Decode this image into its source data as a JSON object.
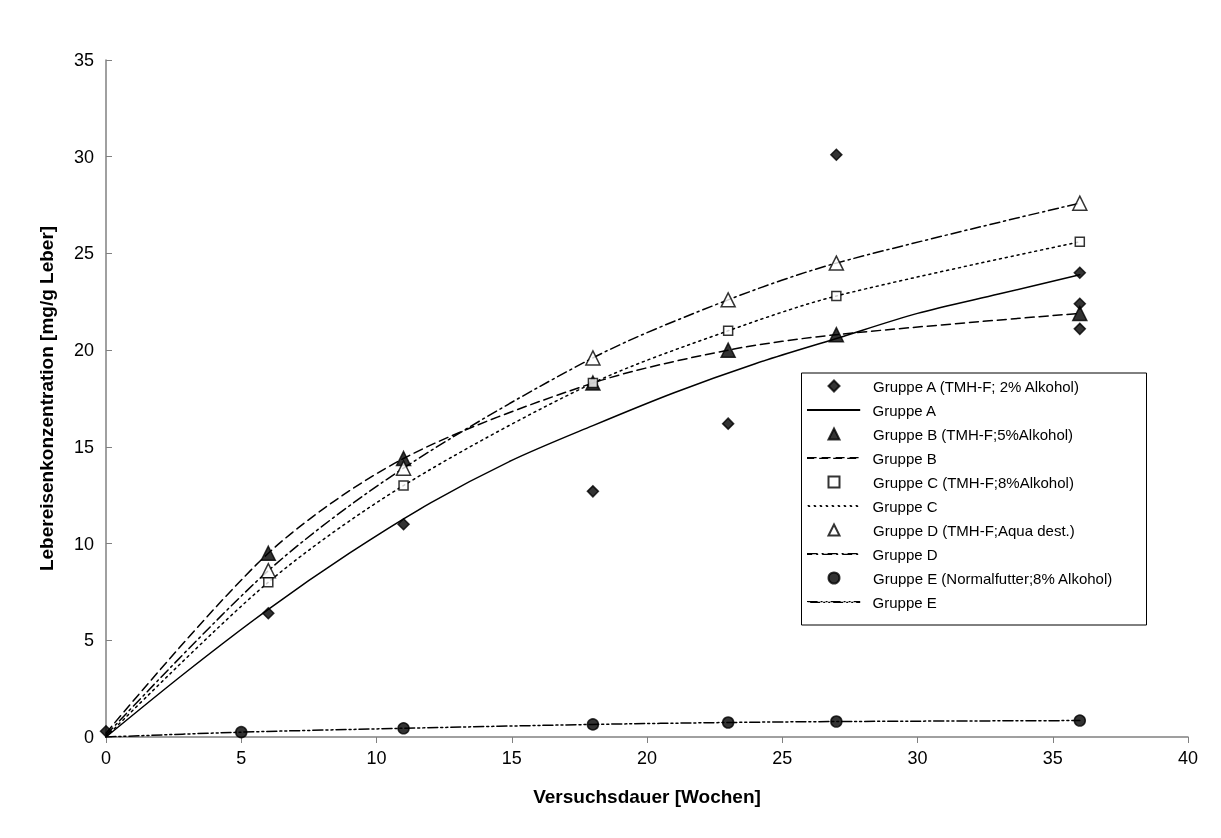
{
  "chart_data": {
    "type": "scatter",
    "xlabel": "Versuchsdauer [Wochen]",
    "ylabel": "Lebereisenkonzentration [mg/g Leber]",
    "xlim": [
      0,
      40
    ],
    "xticks": [
      0,
      5,
      10,
      15,
      20,
      25,
      30,
      35,
      40
    ],
    "ylim": [
      0,
      35
    ],
    "yticks": [
      0,
      5,
      10,
      15,
      20,
      25,
      30,
      35
    ],
    "grid": false,
    "legend": "right",
    "series": [
      {
        "name": "Gruppe A (TMH-F; 2% Alkohol)",
        "marker": "diamond",
        "color": "#000000",
        "x": [
          0,
          6,
          11,
          18,
          23,
          27,
          36,
          36,
          36
        ],
        "values": [
          0.3,
          6.4,
          11,
          12.7,
          16.2,
          30.1,
          24,
          22.4,
          21.1
        ]
      },
      {
        "name": "Gruppe A",
        "type": "line",
        "line_style": "solid",
        "marker": "none",
        "color": "#000000",
        "x": [
          0,
          3,
          6,
          9,
          12,
          15,
          18,
          21,
          24,
          27,
          30,
          33,
          36
        ],
        "values": [
          0,
          3.4,
          6.6,
          9.5,
          12.1,
          14.3,
          16.1,
          17.8,
          19.3,
          20.6,
          21.9,
          22.9,
          23.9
        ]
      },
      {
        "name": "Gruppe B (TMH-F;5%Alkohol)",
        "marker": "triangle",
        "color": "#000000",
        "x": [
          6,
          11,
          18,
          23,
          27,
          36
        ],
        "values": [
          9.5,
          14.4,
          18.3,
          20,
          20.8,
          21.9
        ]
      },
      {
        "name": "Gruppe B",
        "type": "line",
        "line_style": "dashed",
        "marker": "none",
        "color": "#000000",
        "x": [
          0,
          6,
          11,
          18,
          23,
          27,
          36
        ],
        "values": [
          0.2,
          9.5,
          14.4,
          18.3,
          20,
          20.8,
          21.9
        ]
      },
      {
        "name": "Gruppe C (TMH-F;8%Alkohol)",
        "marker": "square",
        "color": "#ffffff",
        "x": [
          6,
          11,
          18,
          23,
          27,
          36
        ],
        "values": [
          8,
          13,
          18.3,
          21,
          22.8,
          25.6
        ]
      },
      {
        "name": "Gruppe C",
        "type": "line",
        "line_style": "dotted",
        "marker": "none",
        "color": "#000000",
        "x": [
          0,
          6,
          11,
          18,
          23,
          27,
          36
        ],
        "values": [
          0,
          8,
          13,
          18.3,
          21,
          22.8,
          25.6
        ]
      },
      {
        "name": "Gruppe D (TMH-F;Aqua dest.)",
        "marker": "triangle",
        "color": "#ffffff",
        "x": [
          6,
          11,
          18,
          23,
          27,
          36
        ],
        "values": [
          8.6,
          13.9,
          19.6,
          22.6,
          24.5,
          27.6
        ]
      },
      {
        "name": "Gruppe D",
        "type": "line",
        "line_style": "dashdot",
        "marker": "none",
        "color": "#000000",
        "x": [
          0,
          6,
          11,
          18,
          23,
          27,
          36
        ],
        "values": [
          0.1,
          8.6,
          13.9,
          19.6,
          22.6,
          24.5,
          27.6
        ]
      },
      {
        "name": "Gruppe E (Normalfutter;8% Alkohol)",
        "marker": "circle",
        "color": "#000000",
        "x": [
          5,
          11,
          18,
          23,
          27,
          36
        ],
        "values": [
          0.25,
          0.45,
          0.65,
          0.75,
          0.8,
          0.85
        ]
      },
      {
        "name": "Gruppe E",
        "type": "line",
        "line_style": "dashdotdot",
        "marker": "none",
        "color": "#000000",
        "x": [
          0,
          5,
          11,
          18,
          23,
          27,
          36
        ],
        "values": [
          0,
          0.25,
          0.45,
          0.65,
          0.75,
          0.8,
          0.85
        ]
      }
    ]
  }
}
